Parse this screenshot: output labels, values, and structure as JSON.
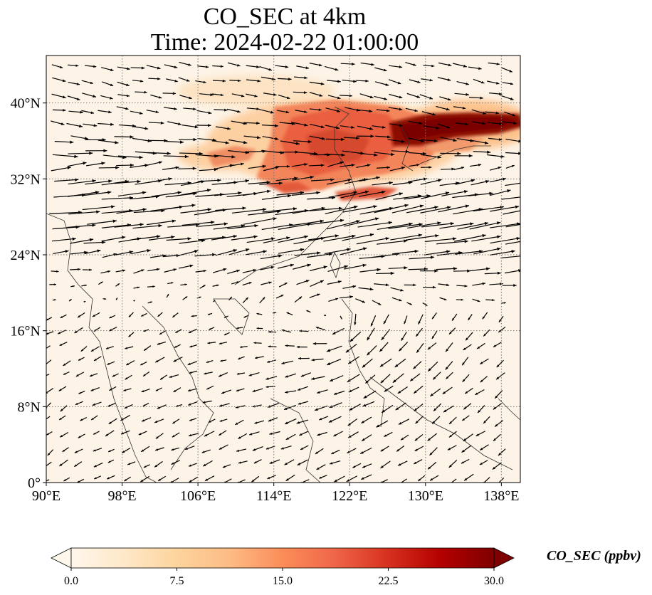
{
  "title": {
    "line1": "CO_SEC at 4km",
    "line2": "Time: 2024-02-22 01:00:00"
  },
  "map": {
    "lon_range": [
      90,
      140
    ],
    "lat_range": [
      0,
      45
    ],
    "lon_ticks": [
      "90°E",
      "98°E",
      "106°E",
      "114°E",
      "122°E",
      "130°E",
      "138°E"
    ],
    "lat_ticks": [
      "0°",
      "8°N",
      "16°N",
      "24°N",
      "32°N",
      "40°N"
    ],
    "gridlines": true,
    "variable": "CO_SEC",
    "overlay": "wind vectors (quiver)",
    "colormap": "OrRd",
    "colormap_colors": [
      "#fff7ec",
      "#fee8c8",
      "#fdd49e",
      "#fdbb84",
      "#fc8d59",
      "#ef6548",
      "#d7301f",
      "#b30000",
      "#7f0000"
    ],
    "high_concentration_regions": [
      {
        "lon": [
          111,
          130
        ],
        "lat": [
          30.5,
          39
        ],
        "level": "moderate-high"
      },
      {
        "lon": [
          126,
          140
        ],
        "lat": [
          35.5,
          39
        ],
        "level": "max"
      },
      {
        "lon": [
          104,
          112
        ],
        "lat": [
          32,
          35
        ],
        "level": "moderate"
      }
    ]
  },
  "colorbar": {
    "label": "CO_SEC (ppbv)",
    "min": 0.0,
    "max": 30.0,
    "ticks": [
      "0.0",
      "7.5",
      "15.0",
      "22.5",
      "30.0"
    ],
    "extend": "both"
  }
}
